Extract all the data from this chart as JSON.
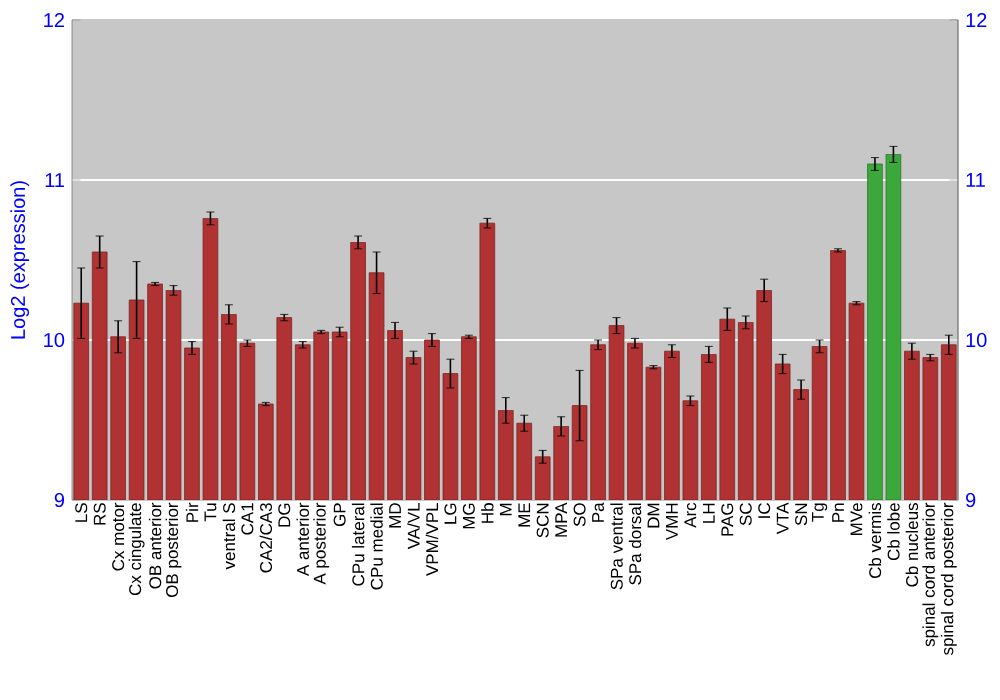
{
  "chart_data": {
    "type": "bar",
    "ylabel": "Log2 (expression)",
    "categories": [
      "LS",
      "RS",
      "Cx motor",
      "Cx cingulate",
      "OB anterior",
      "OB posterior",
      "Pir",
      "Tu",
      "ventral S",
      "CA1",
      "CA2/CA3",
      "DG",
      "A anterior",
      "A posterior",
      "GP",
      "CPu lateral",
      "CPu medial",
      "MD",
      "VA/VL",
      "VPM/VPL",
      "LG",
      "MG",
      "Hb",
      "M",
      "ME",
      "SCN",
      "MPA",
      "SO",
      "Pa",
      "SPa ventral",
      "SPa dorsal",
      "DM",
      "VMH",
      "Arc",
      "LH",
      "PAG",
      "SC",
      "IC",
      "VTA",
      "SN",
      "Tg",
      "Pn",
      "MVe",
      "Cb vermis",
      "Cb lobe",
      "Cb nucleus",
      "spinal cord anterior",
      "spinal cord posterior"
    ],
    "values": [
      10.23,
      10.55,
      10.02,
      10.25,
      10.35,
      10.31,
      9.95,
      10.76,
      10.16,
      9.98,
      9.6,
      10.14,
      9.97,
      10.05,
      10.05,
      10.61,
      10.42,
      10.06,
      9.89,
      10.0,
      9.79,
      10.02,
      10.73,
      9.56,
      9.48,
      9.27,
      9.46,
      9.59,
      9.97,
      10.09,
      9.98,
      9.83,
      9.93,
      9.62,
      9.91,
      10.13,
      10.11,
      10.31,
      9.85,
      9.69,
      9.96,
      10.56,
      10.23,
      11.1,
      11.16,
      9.93,
      9.89,
      9.97
    ],
    "errors": [
      0.22,
      0.1,
      0.1,
      0.24,
      0.01,
      0.03,
      0.04,
      0.04,
      0.06,
      0.02,
      0.01,
      0.02,
      0.02,
      0.01,
      0.03,
      0.04,
      0.13,
      0.05,
      0.04,
      0.04,
      0.09,
      0.01,
      0.03,
      0.08,
      0.05,
      0.04,
      0.06,
      0.22,
      0.03,
      0.05,
      0.03,
      0.01,
      0.04,
      0.03,
      0.05,
      0.07,
      0.04,
      0.07,
      0.06,
      0.06,
      0.04,
      0.01,
      0.01,
      0.04,
      0.05,
      0.05,
      0.02,
      0.06
    ],
    "colors": [
      "#b03232",
      "#b03232",
      "#b03232",
      "#b03232",
      "#b03232",
      "#b03232",
      "#b03232",
      "#b03232",
      "#b03232",
      "#b03232",
      "#b03232",
      "#b03232",
      "#b03232",
      "#b03232",
      "#b03232",
      "#b03232",
      "#b03232",
      "#b03232",
      "#b03232",
      "#b03232",
      "#b03232",
      "#b03232",
      "#b03232",
      "#b03232",
      "#b03232",
      "#b03232",
      "#b03232",
      "#b03232",
      "#b03232",
      "#b03232",
      "#b03232",
      "#b03232",
      "#b03232",
      "#b03232",
      "#b03232",
      "#b03232",
      "#b03232",
      "#b03232",
      "#b03232",
      "#b03232",
      "#b03232",
      "#b03232",
      "#b03232",
      "#3ca83c",
      "#3ca83c",
      "#b03232",
      "#b03232",
      "#b03232"
    ],
    "ylim": [
      9,
      12
    ],
    "yticks": [
      9,
      10,
      11,
      12
    ],
    "y2lim": [
      9,
      12
    ],
    "y2ticks": [
      9,
      10,
      11,
      12
    ],
    "grid": "y"
  }
}
